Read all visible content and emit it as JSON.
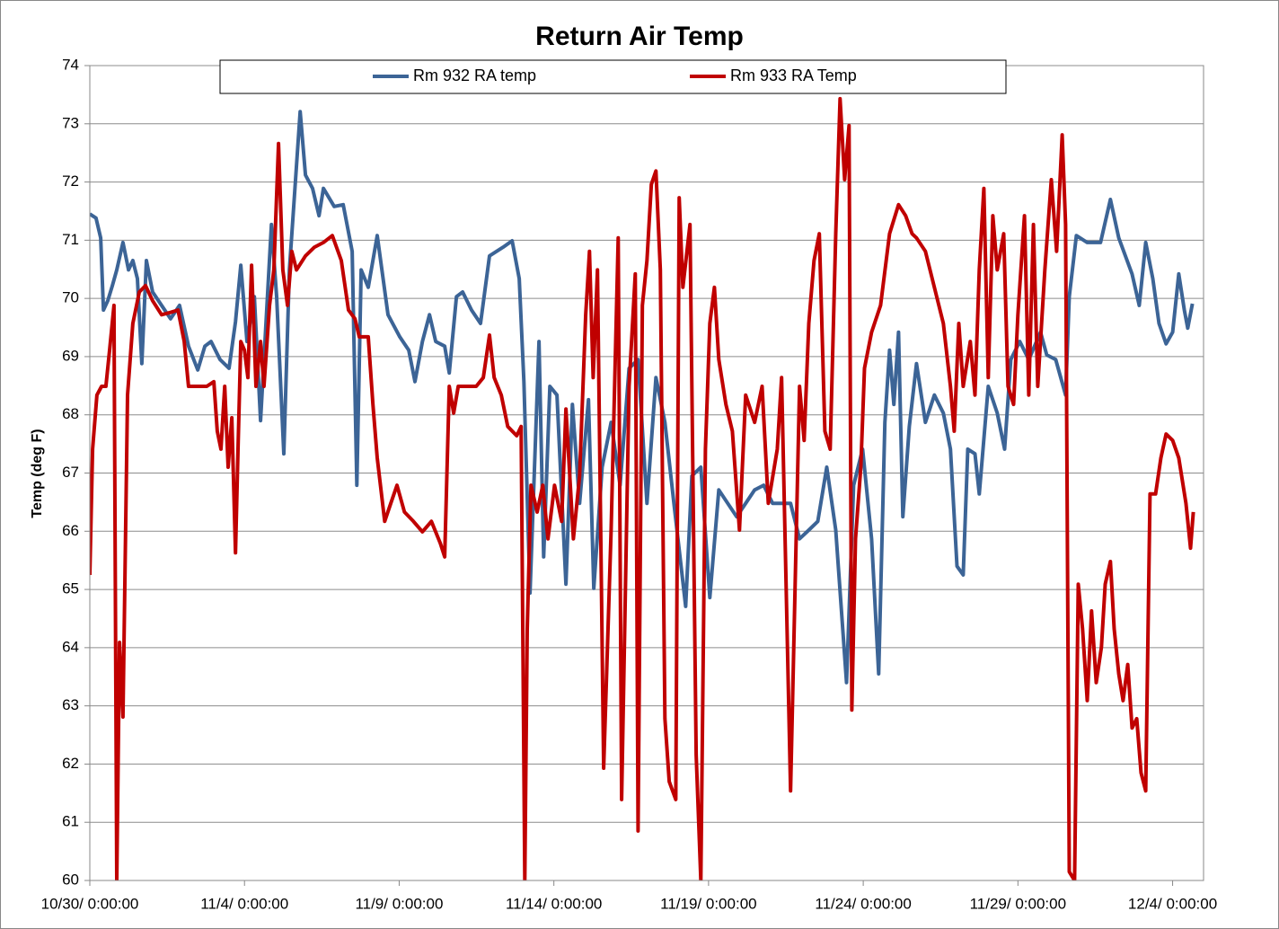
{
  "chart_data": {
    "type": "line",
    "title": "Return Air Temp",
    "y_label": "Temp (deg F)",
    "xlim": [
      0,
      36
    ],
    "xticks": [
      {
        "value": 0,
        "label": "10/30/ 0:00:00"
      },
      {
        "value": 5,
        "label": "11/4/ 0:00:00"
      },
      {
        "value": 10,
        "label": "11/9/ 0:00:00"
      },
      {
        "value": 15,
        "label": "11/14/ 0:00:00"
      },
      {
        "value": 20,
        "label": "11/19/ 0:00:00"
      },
      {
        "value": 25,
        "label": "11/24/ 0:00:00"
      },
      {
        "value": 30,
        "label": "11/29/ 0:00:00"
      },
      {
        "value": 35,
        "label": "12/4/ 0:00:00"
      }
    ],
    "ylim": [
      60,
      74
    ],
    "yticks": [
      60,
      61,
      62,
      63,
      64,
      65,
      66,
      67,
      68,
      69,
      70,
      71,
      72,
      73,
      74
    ],
    "grid": true,
    "legend": "top",
    "series": [
      {
        "name": "Rm 932 RA temp",
        "color": "#3c6496",
        "x": [
          0,
          0.2,
          0.35,
          0.44,
          0.58,
          0.73,
          0.87,
          1.07,
          1.25,
          1.39,
          1.54,
          1.68,
          1.83,
          2.03,
          2.32,
          2.61,
          2.9,
          3.19,
          3.49,
          3.72,
          3.92,
          4.21,
          4.5,
          4.71,
          4.88,
          5.08,
          5.32,
          5.52,
          5.66,
          5.87,
          6.04,
          6.27,
          6.45,
          6.8,
          6.97,
          7.2,
          7.41,
          7.55,
          7.9,
          8.19,
          8.48,
          8.63,
          8.77,
          9.0,
          9.29,
          9.64,
          10.02,
          10.31,
          10.51,
          10.75,
          10.98,
          11.18,
          11.47,
          11.62,
          11.85,
          12.05,
          12.34,
          12.63,
          12.92,
          13.36,
          13.65,
          13.88,
          14.03,
          14.23,
          14.52,
          14.67,
          14.87,
          15.1,
          15.39,
          15.6,
          15.83,
          16.12,
          16.29,
          16.56,
          16.85,
          17.14,
          17.43,
          17.72,
          18.01,
          18.3,
          18.59,
          18.88,
          19.26,
          19.46,
          19.75,
          20.04,
          20.33,
          20.62,
          20.91,
          21.2,
          21.49,
          21.78,
          22.07,
          22.36,
          22.65,
          22.94,
          23.24,
          23.53,
          23.82,
          24.11,
          24.46,
          24.69,
          24.98,
          25.27,
          25.5,
          25.7,
          25.85,
          25.99,
          26.14,
          26.28,
          26.49,
          26.72,
          27.01,
          27.3,
          27.59,
          27.82,
          28.03,
          28.23,
          28.38,
          28.61,
          28.75,
          29.04,
          29.33,
          29.57,
          29.77,
          30.06,
          30.35,
          30.73,
          30.93,
          31.22,
          31.54,
          31.66,
          31.89,
          32.24,
          32.67,
          32.99,
          33.26,
          33.69,
          33.92,
          34.13,
          34.36,
          34.56,
          34.79,
          35.0,
          35.2,
          35.38,
          35.49,
          35.64
        ],
        "values": [
          71.45,
          71.38,
          71.04,
          69.8,
          69.96,
          70.22,
          70.49,
          70.96,
          70.49,
          70.65,
          70.34,
          68.88,
          70.65,
          70.11,
          69.88,
          69.65,
          69.88,
          69.18,
          68.77,
          69.18,
          69.26,
          68.95,
          68.8,
          69.6,
          70.57,
          69.26,
          70.03,
          67.9,
          69.26,
          71.27,
          70.03,
          67.33,
          70.49,
          73.21,
          72.12,
          71.89,
          71.42,
          71.89,
          71.58,
          71.61,
          70.81,
          66.79,
          70.49,
          70.19,
          71.08,
          69.72,
          69.34,
          69.11,
          68.57,
          69.26,
          69.72,
          69.26,
          69.18,
          68.72,
          70.03,
          70.11,
          69.8,
          69.57,
          70.73,
          70.88,
          70.99,
          70.34,
          68.57,
          64.94,
          69.26,
          65.56,
          68.49,
          68.34,
          65.09,
          68.18,
          66.48,
          68.26,
          65.02,
          67.1,
          67.87,
          66.79,
          68.8,
          68.95,
          66.48,
          68.64,
          67.87,
          66.48,
          64.71,
          66.95,
          67.1,
          64.86,
          66.71,
          66.48,
          66.25,
          66.48,
          66.71,
          66.79,
          66.48,
          66.48,
          66.48,
          65.87,
          66.02,
          66.17,
          67.1,
          66.02,
          63.4,
          66.79,
          67.41,
          65.87,
          63.55,
          67.87,
          69.11,
          68.18,
          69.42,
          66.25,
          67.8,
          68.88,
          67.87,
          68.34,
          68.03,
          67.41,
          65.4,
          65.25,
          67.41,
          67.33,
          66.64,
          68.49,
          68.03,
          67.41,
          68.95,
          69.26,
          68.95,
          69.42,
          69.03,
          68.95,
          68.34,
          70.03,
          71.08,
          70.96,
          70.96,
          71.7,
          71.04,
          70.42,
          69.88,
          70.96,
          70.34,
          69.57,
          69.22,
          69.42,
          70.42,
          69.8,
          69.49,
          69.91
        ]
      },
      {
        "name": "Rm 933 RA Temp",
        "color": "#c00000",
        "x": [
          0,
          0.09,
          0.23,
          0.38,
          0.52,
          0.64,
          0.78,
          0.87,
          0.96,
          1.07,
          1.22,
          1.39,
          1.6,
          1.8,
          2.03,
          2.32,
          2.61,
          2.85,
          3.05,
          3.19,
          3.49,
          3.78,
          4.01,
          4.12,
          4.24,
          4.36,
          4.47,
          4.59,
          4.71,
          4.79,
          4.88,
          5.0,
          5.11,
          5.23,
          5.37,
          5.52,
          5.63,
          5.81,
          5.95,
          6.1,
          6.24,
          6.39,
          6.53,
          6.68,
          6.97,
          7.26,
          7.55,
          7.84,
          8.13,
          8.36,
          8.57,
          8.71,
          9.0,
          9.15,
          9.29,
          9.53,
          9.73,
          9.93,
          10.17,
          10.46,
          10.75,
          11.04,
          11.33,
          11.47,
          11.62,
          11.76,
          11.91,
          12.2,
          12.49,
          12.72,
          12.92,
          13.07,
          13.3,
          13.51,
          13.8,
          13.94,
          14.06,
          14.14,
          14.26,
          14.46,
          14.64,
          14.81,
          15.02,
          15.25,
          15.39,
          15.63,
          15.83,
          16.03,
          16.15,
          16.27,
          16.41,
          16.61,
          16.85,
          17.08,
          17.19,
          17.43,
          17.63,
          17.72,
          17.86,
          18.01,
          18.15,
          18.3,
          18.44,
          18.59,
          18.73,
          18.94,
          19.05,
          19.17,
          19.4,
          19.6,
          19.75,
          19.9,
          20.04,
          20.19,
          20.33,
          20.56,
          20.77,
          21.0,
          21.2,
          21.49,
          21.73,
          21.93,
          22.22,
          22.36,
          22.65,
          22.8,
          22.94,
          23.09,
          23.24,
          23.41,
          23.58,
          23.76,
          23.93,
          24.11,
          24.25,
          24.4,
          24.54,
          24.63,
          24.75,
          24.92,
          25.04,
          25.27,
          25.56,
          25.85,
          26.14,
          26.37,
          26.58,
          26.72,
          27.01,
          27.3,
          27.59,
          27.82,
          27.94,
          28.09,
          28.23,
          28.46,
          28.61,
          28.75,
          28.9,
          29.04,
          29.19,
          29.33,
          29.54,
          29.68,
          29.86,
          30.0,
          30.21,
          30.35,
          30.5,
          30.64,
          30.87,
          31.08,
          31.25,
          31.43,
          31.54,
          31.66,
          31.83,
          31.95,
          32.09,
          32.24,
          32.38,
          32.53,
          32.7,
          32.82,
          32.99,
          33.11,
          33.26,
          33.4,
          33.55,
          33.69,
          33.84,
          33.98,
          34.13,
          34.27,
          34.45,
          34.62,
          34.79,
          35.0,
          35.2,
          35.43,
          35.58,
          35.67
        ],
        "values": [
          65.25,
          67.41,
          68.34,
          68.49,
          68.49,
          69.11,
          69.88,
          60,
          64.09,
          62.81,
          68.34,
          69.57,
          70.11,
          70.22,
          69.96,
          69.72,
          69.76,
          69.8,
          69.26,
          68.49,
          68.49,
          68.49,
          68.57,
          67.72,
          67.41,
          68.49,
          67.1,
          67.95,
          65.63,
          67.41,
          69.26,
          69.11,
          68.64,
          70.57,
          68.49,
          69.26,
          68.49,
          69.88,
          70.49,
          72.66,
          70.49,
          69.88,
          70.81,
          70.49,
          70.73,
          70.88,
          70.96,
          71.08,
          70.65,
          69.8,
          69.65,
          69.34,
          69.34,
          68.18,
          67.26,
          66.17,
          66.48,
          66.79,
          66.33,
          66.17,
          65.99,
          66.17,
          65.79,
          65.56,
          68.49,
          68.03,
          68.49,
          68.49,
          68.49,
          68.64,
          69.37,
          68.64,
          68.34,
          67.8,
          67.64,
          67.8,
          60,
          64.32,
          66.79,
          66.33,
          66.79,
          65.87,
          66.79,
          66.17,
          68.1,
          65.87,
          66.95,
          69.72,
          70.81,
          68.64,
          70.49,
          61.93,
          66.02,
          71.04,
          61.39,
          68.49,
          70.42,
          60.85,
          69.88,
          70.65,
          71.96,
          72.19,
          70.49,
          62.78,
          61.7,
          61.39,
          71.73,
          70.19,
          71.27,
          62.16,
          60,
          67.41,
          69.57,
          70.19,
          68.95,
          68.18,
          67.72,
          66.02,
          68.34,
          67.87,
          68.49,
          66.48,
          67.41,
          68.64,
          61.54,
          65.09,
          68.49,
          67.56,
          69.57,
          70.65,
          71.11,
          67.72,
          67.41,
          71.11,
          73.43,
          72.04,
          72.97,
          62.93,
          65.87,
          67.1,
          68.8,
          69.42,
          69.88,
          71.11,
          71.61,
          71.42,
          71.11,
          71.04,
          70.81,
          70.19,
          69.57,
          68.49,
          67.72,
          69.57,
          68.49,
          69.26,
          68.34,
          70.49,
          71.89,
          68.64,
          71.42,
          70.49,
          71.11,
          68.49,
          68.18,
          69.72,
          71.42,
          68.34,
          71.27,
          68.49,
          70.49,
          72.04,
          70.81,
          72.81,
          71.27,
          60.15,
          60,
          65.09,
          64.32,
          63.09,
          64.63,
          63.4,
          64.01,
          65.09,
          65.48,
          64.32,
          63.55,
          63.09,
          63.71,
          62.62,
          62.78,
          61.85,
          61.54,
          66.64,
          66.64,
          67.26,
          67.67,
          67.56,
          67.26,
          66.48,
          65.71,
          66.33
        ]
      }
    ]
  }
}
